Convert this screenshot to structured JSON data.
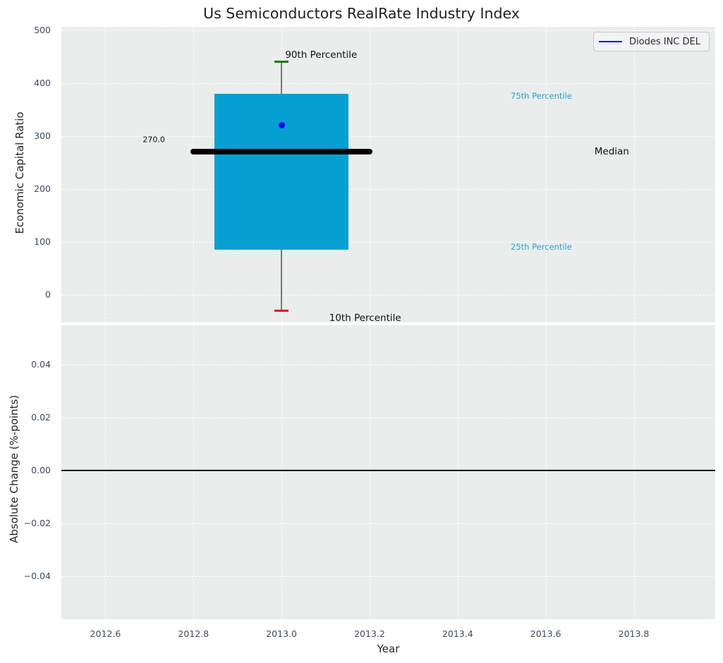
{
  "title": "Us Semiconductors RealRate Industry Index",
  "legend": {
    "label": "Diodes INC DEL"
  },
  "colors": {
    "plot_bg": "#e9edec",
    "grid": "#ffffff",
    "box_fill": "#069fd2",
    "median_line": "#000000",
    "whisker": "#787878",
    "cap_top": "#0e7e12",
    "cap_bottom": "#ee0c0c",
    "marker": "#0404ee",
    "legend_line": "#0404ee",
    "zero_line": "#111111",
    "tick_label": "#3e4a5f",
    "annotation_dark": "#111111",
    "annotation_blue": "#2ca0d2"
  },
  "chart_data": {
    "type": "box",
    "title": "Us Semiconductors RealRate Industry Index",
    "legend_entries": [
      "Diodes INC DEL"
    ],
    "x_axis": {
      "label": "Year",
      "lim": [
        2012.5,
        2013.985
      ],
      "ticks": [
        {
          "v": 2012.6,
          "label": "2012.6"
        },
        {
          "v": 2012.8,
          "label": "2012.8"
        },
        {
          "v": 2013.0,
          "label": "2013.0"
        },
        {
          "v": 2013.2,
          "label": "2013.2"
        },
        {
          "v": 2013.4,
          "label": "2013.4"
        },
        {
          "v": 2013.6,
          "label": "2013.6"
        },
        {
          "v": 2013.8,
          "label": "2013.8"
        }
      ]
    },
    "top_panel": {
      "ylabel": "Economic Capital Ratio",
      "ylim": [
        -52,
        506
      ],
      "yticks": [
        {
          "v": 0,
          "label": "0"
        },
        {
          "v": 100,
          "label": "100"
        },
        {
          "v": 200,
          "label": "200"
        },
        {
          "v": 300,
          "label": "300"
        },
        {
          "v": 400,
          "label": "400"
        },
        {
          "v": 500,
          "label": "500"
        }
      ],
      "box": {
        "series": "Diodes INC DEL",
        "x": 2013.0,
        "p10": -30,
        "p25": 85,
        "median": 270,
        "p75": 380,
        "p90": 440,
        "company_value": 320,
        "box_halfwidth": 0.152,
        "median_halfwidth": 0.207,
        "cap_halfwidth": 0.016
      },
      "annotations": [
        {
          "text": "90th Percentile",
          "x": 2013.09,
          "y": 453,
          "style": "dark",
          "size": 13.5
        },
        {
          "text": "10th Percentile",
          "x": 2013.19,
          "y": -44,
          "style": "dark",
          "size": 13.5
        },
        {
          "text": "75th Percentile",
          "x": 2013.59,
          "y": 375,
          "style": "blue",
          "size": 11.5
        },
        {
          "text": "25th Percentile",
          "x": 2013.59,
          "y": 91,
          "style": "blue",
          "size": 11.5
        },
        {
          "text": "Median",
          "x": 2013.75,
          "y": 270,
          "style": "dark",
          "size": 13.5
        },
        {
          "text": "270.0",
          "x": 2012.71,
          "y": 293,
          "style": "dark",
          "size": 11
        }
      ]
    },
    "bottom_panel": {
      "ylabel": "Absolute Change (%-points)",
      "ylim": [
        -0.0563,
        0.0549
      ],
      "yticks": [
        {
          "v": 0.04,
          "label": "0.04"
        },
        {
          "v": 0.02,
          "label": "0.02"
        },
        {
          "v": 0.0,
          "label": "0.00"
        },
        {
          "v": -0.02,
          "label": "−0.02"
        },
        {
          "v": -0.04,
          "label": "−0.04"
        }
      ],
      "zero_line": 0.0
    }
  }
}
